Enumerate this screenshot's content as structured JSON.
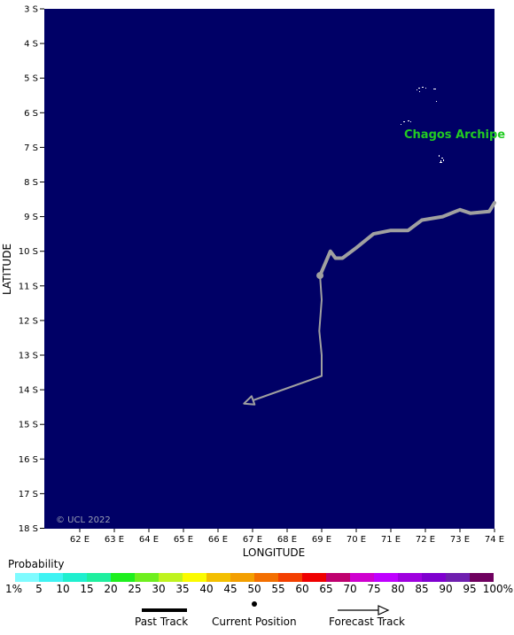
{
  "map": {
    "place_label": "Chagos Archipe",
    "copyright": "© UCL 2022",
    "x_axis_title": "LONGITUDE",
    "y_axis_title": "LATITUDE",
    "background_color": "#000066",
    "land_color": "#ffffff",
    "track_color": "#a0a0a0",
    "lat_ticks": [
      "3 S",
      "4 S",
      "5 S",
      "6 S",
      "7 S",
      "8 S",
      "9 S",
      "10 S",
      "11 S",
      "12 S",
      "13 S",
      "14 S",
      "15 S",
      "16 S",
      "17 S",
      "18 S"
    ],
    "lon_ticks": [
      "62 E",
      "63 E",
      "64 E",
      "65 E",
      "66 E",
      "67 E",
      "68 E",
      "69 E",
      "70 E",
      "71 E",
      "72 E",
      "73 E",
      "74 E"
    ],
    "past_track": [
      {
        "lon": 74.0,
        "lat": 8.6
      },
      {
        "lon": 73.85,
        "lat": 8.85
      },
      {
        "lon": 73.3,
        "lat": 8.9
      },
      {
        "lon": 73.0,
        "lat": 8.8
      },
      {
        "lon": 72.5,
        "lat": 9.0
      },
      {
        "lon": 71.9,
        "lat": 9.1
      },
      {
        "lon": 71.5,
        "lat": 9.4
      },
      {
        "lon": 71.0,
        "lat": 9.4
      },
      {
        "lon": 70.5,
        "lat": 9.5
      },
      {
        "lon": 70.0,
        "lat": 9.9
      },
      {
        "lon": 69.6,
        "lat": 10.2
      },
      {
        "lon": 69.4,
        "lat": 10.2
      },
      {
        "lon": 69.25,
        "lat": 10.0
      },
      {
        "lon": 68.95,
        "lat": 10.7
      }
    ],
    "current_position": {
      "lon": 68.95,
      "lat": 10.7
    },
    "forecast_track": [
      {
        "lon": 68.95,
        "lat": 10.7
      },
      {
        "lon": 69.0,
        "lat": 11.4
      },
      {
        "lon": 68.93,
        "lat": 12.3
      },
      {
        "lon": 69.0,
        "lat": 13.0
      },
      {
        "lon": 69.0,
        "lat": 13.6
      },
      {
        "lon": 66.75,
        "lat": 14.4
      }
    ]
  },
  "legend": {
    "title": "Probability",
    "colors": [
      "#7ffbff",
      "#3ff3f3",
      "#1fefcf",
      "#1fef9f",
      "#1fef1f",
      "#6fef1f",
      "#bff31f",
      "#fbfb00",
      "#f3bf00",
      "#f39f00",
      "#f36f00",
      "#f33f00",
      "#ef0000",
      "#bf006f",
      "#cf00cf",
      "#bf00ff",
      "#9f00df",
      "#7f00cf",
      "#6f1faf",
      "#6f005f"
    ],
    "labels": [
      "1%",
      "5",
      "10",
      "15",
      "20",
      "25",
      "30",
      "35",
      "40",
      "45",
      "50",
      "55",
      "60",
      "65",
      "70",
      "75",
      "80",
      "85",
      "90",
      "95",
      "100%"
    ],
    "past_track_label": "Past Track",
    "current_position_label": "Current Position",
    "forecast_track_label": "Forecast Track"
  }
}
